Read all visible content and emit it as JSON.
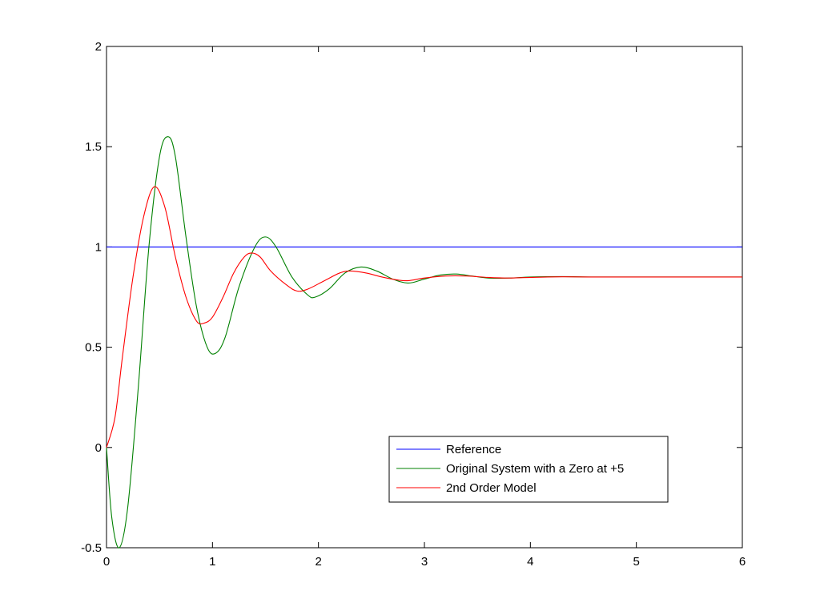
{
  "chart_data": {
    "type": "line",
    "title": "",
    "xlabel": "",
    "ylabel": "",
    "xlim": [
      0,
      6
    ],
    "ylim": [
      -0.5,
      2
    ],
    "x_ticks": [
      0,
      1,
      2,
      3,
      4,
      5,
      6
    ],
    "x_tick_labels": [
      "0",
      "1",
      "2",
      "3",
      "4",
      "5",
      "6"
    ],
    "y_ticks": [
      -0.5,
      0,
      0.5,
      1,
      1.5,
      2
    ],
    "y_tick_labels": [
      "-0.5",
      "0",
      "0.5",
      "1",
      "1.5",
      "2"
    ],
    "grid": false,
    "legend_position": "lower-right",
    "series": [
      {
        "name": "Reference",
        "color": "#0000ff",
        "points": [
          [
            0,
            1
          ],
          [
            6,
            1
          ]
        ]
      },
      {
        "name": "Original System with a Zero at +5",
        "color": "#008000",
        "points": [
          [
            0,
            0
          ],
          [
            0.05,
            -0.35
          ],
          [
            0.12,
            -0.5
          ],
          [
            0.2,
            -0.3
          ],
          [
            0.3,
            0.3
          ],
          [
            0.4,
            1.0
          ],
          [
            0.5,
            1.45
          ],
          [
            0.58,
            1.55
          ],
          [
            0.65,
            1.45
          ],
          [
            0.75,
            1.05
          ],
          [
            0.85,
            0.7
          ],
          [
            0.95,
            0.5
          ],
          [
            1.03,
            0.47
          ],
          [
            1.12,
            0.55
          ],
          [
            1.25,
            0.8
          ],
          [
            1.4,
            1.0
          ],
          [
            1.5,
            1.05
          ],
          [
            1.6,
            1.0
          ],
          [
            1.75,
            0.85
          ],
          [
            1.9,
            0.76
          ],
          [
            1.97,
            0.75
          ],
          [
            2.1,
            0.79
          ],
          [
            2.25,
            0.87
          ],
          [
            2.4,
            0.9
          ],
          [
            2.55,
            0.88
          ],
          [
            2.7,
            0.84
          ],
          [
            2.85,
            0.82
          ],
          [
            3.0,
            0.84
          ],
          [
            3.15,
            0.86
          ],
          [
            3.3,
            0.865
          ],
          [
            3.45,
            0.855
          ],
          [
            3.6,
            0.845
          ],
          [
            3.8,
            0.845
          ],
          [
            4.0,
            0.85
          ],
          [
            4.3,
            0.852
          ],
          [
            4.6,
            0.85
          ],
          [
            5.0,
            0.85
          ],
          [
            5.5,
            0.85
          ],
          [
            6.0,
            0.85
          ]
        ]
      },
      {
        "name": "2nd Order Model",
        "color": "#ff0000",
        "points": [
          [
            0,
            0
          ],
          [
            0.08,
            0.15
          ],
          [
            0.15,
            0.45
          ],
          [
            0.25,
            0.85
          ],
          [
            0.35,
            1.15
          ],
          [
            0.45,
            1.3
          ],
          [
            0.55,
            1.2
          ],
          [
            0.65,
            0.95
          ],
          [
            0.75,
            0.75
          ],
          [
            0.85,
            0.63
          ],
          [
            0.92,
            0.62
          ],
          [
            1.0,
            0.65
          ],
          [
            1.1,
            0.75
          ],
          [
            1.2,
            0.87
          ],
          [
            1.3,
            0.95
          ],
          [
            1.37,
            0.97
          ],
          [
            1.45,
            0.95
          ],
          [
            1.55,
            0.88
          ],
          [
            1.7,
            0.81
          ],
          [
            1.8,
            0.78
          ],
          [
            1.9,
            0.79
          ],
          [
            2.05,
            0.83
          ],
          [
            2.2,
            0.87
          ],
          [
            2.3,
            0.88
          ],
          [
            2.45,
            0.87
          ],
          [
            2.6,
            0.85
          ],
          [
            2.75,
            0.835
          ],
          [
            2.85,
            0.832
          ],
          [
            3.0,
            0.845
          ],
          [
            3.2,
            0.855
          ],
          [
            3.4,
            0.855
          ],
          [
            3.6,
            0.848
          ],
          [
            3.8,
            0.845
          ],
          [
            4.0,
            0.848
          ],
          [
            4.3,
            0.851
          ],
          [
            4.6,
            0.85
          ],
          [
            5.0,
            0.85
          ],
          [
            5.5,
            0.85
          ],
          [
            6.0,
            0.85
          ]
        ]
      }
    ]
  }
}
